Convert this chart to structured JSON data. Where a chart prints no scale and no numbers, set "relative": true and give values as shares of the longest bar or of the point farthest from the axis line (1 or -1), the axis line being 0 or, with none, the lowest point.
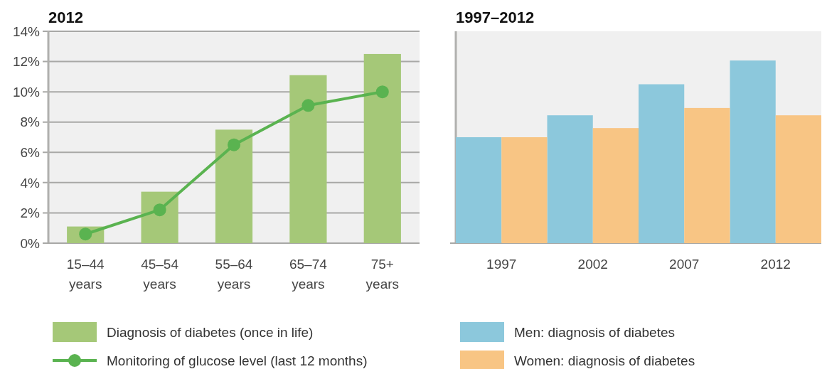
{
  "chart_data": [
    {
      "type": "bar",
      "title": "2012",
      "categories": [
        "15–44\nyears",
        "45–54\nyears",
        "55–64\nyears",
        "65–74\nyears",
        "75+\nyears"
      ],
      "series": [
        {
          "name": "Diagnosis of diabetes (once in life)",
          "color": "#a5c878",
          "values": [
            1.1,
            3.4,
            7.5,
            11.1,
            12.5
          ]
        },
        {
          "type": "line",
          "name": "Monitoring of glucose level (last 12 months)",
          "color": "#5ab350",
          "values": [
            0.6,
            2.2,
            6.5,
            9.1,
            10.0
          ]
        }
      ],
      "ylim": [
        0,
        14
      ],
      "yticks": [
        {
          "value": 0,
          "label": "0%"
        },
        {
          "value": 2,
          "label": "2%"
        },
        {
          "value": 4,
          "label": "4%"
        },
        {
          "value": 6,
          "label": "6%"
        },
        {
          "value": 8,
          "label": "8%"
        },
        {
          "value": 10,
          "label": "10%"
        },
        {
          "value": 12,
          "label": "12%"
        },
        {
          "value": 14,
          "label": "14%"
        }
      ],
      "grid": "y",
      "marker": "circle",
      "legend": "bottom"
    },
    {
      "type": "bar",
      "title": "1997–2012",
      "categories": [
        "1997",
        "2002",
        "2007",
        "2012"
      ],
      "relative": true,
      "series": [
        {
          "name": "Men: diagnosis of diabetes",
          "color": "#8cc8dc",
          "values": [
            0.58,
            0.7,
            0.87,
            1
          ]
        },
        {
          "name": "Women: diagnosis of diabetes",
          "color": "#f8c584",
          "values": [
            0.58,
            0.63,
            0.74,
            0.7
          ]
        }
      ],
      "legend": "bottom"
    }
  ]
}
